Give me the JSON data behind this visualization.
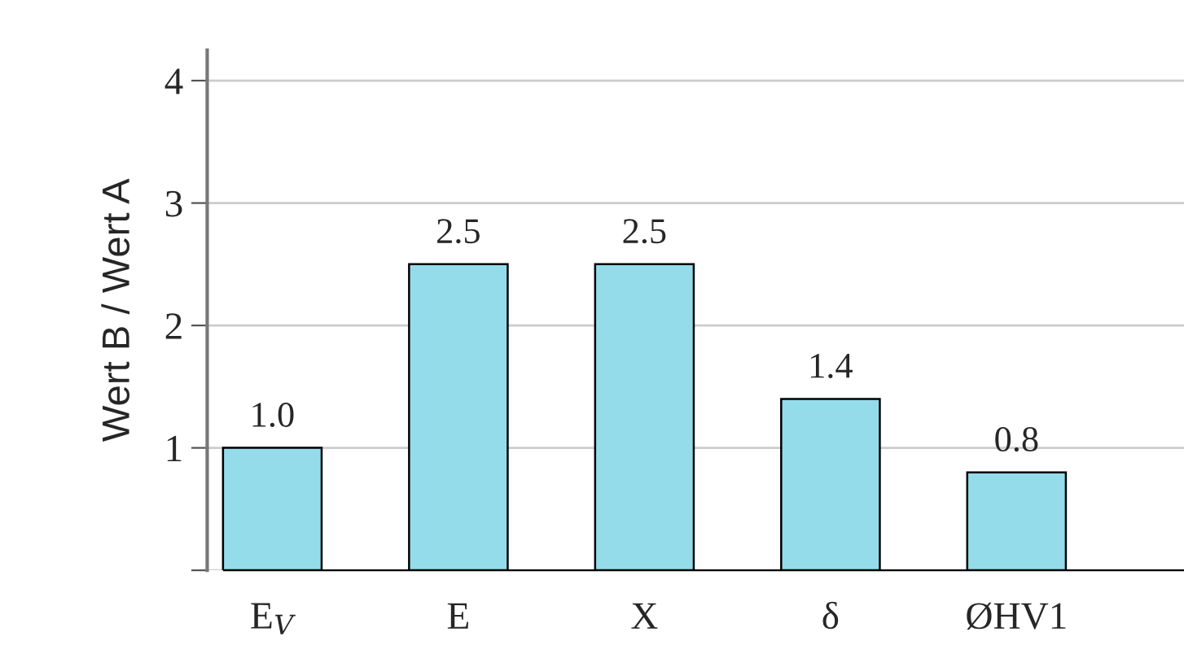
{
  "chart_data": {
    "type": "bar",
    "ylabel": "Wert B / Wert A",
    "categories": [
      "E$_{V}$",
      "E",
      "X",
      "δ",
      "ØHV1"
    ],
    "values": [
      1.0,
      2.5,
      2.5,
      1.4,
      0.8
    ],
    "color": "#95dceb",
    "ylim": [
      0,
      4.25
    ],
    "yticks": [
      {
        "value": 0,
        "label": null
      },
      1,
      2,
      3,
      4
    ],
    "grid": "y",
    "value_labels": [
      "1.0",
      "2.5",
      "2.5",
      "1.4",
      "0.8"
    ]
  }
}
